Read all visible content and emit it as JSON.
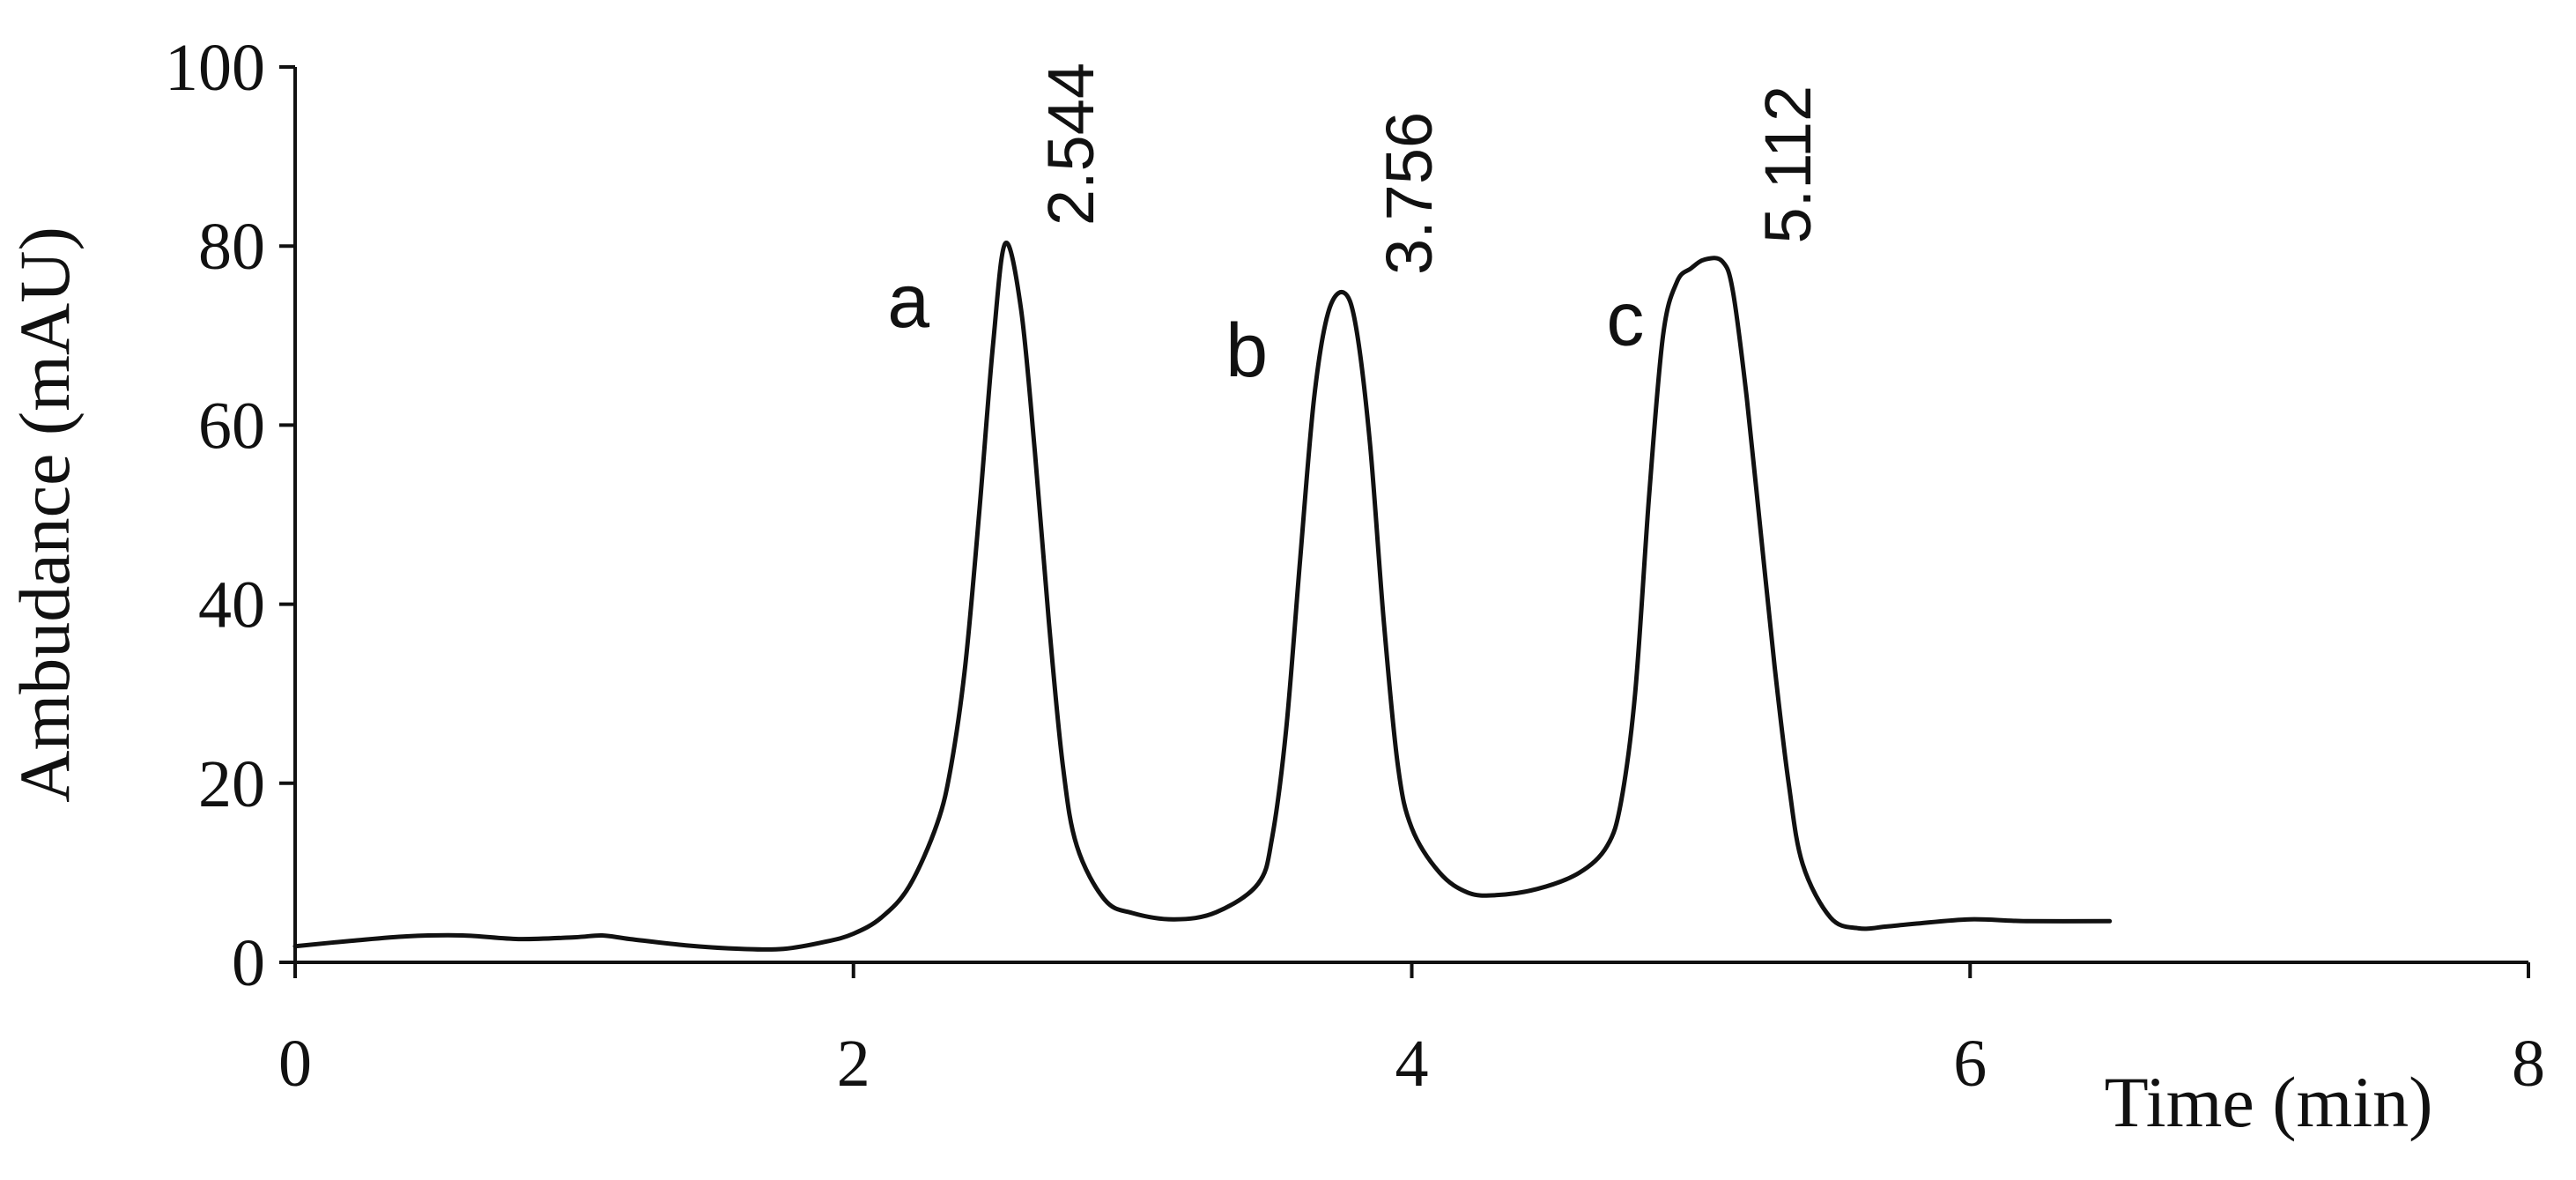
{
  "chart_data": {
    "type": "line",
    "xlabel": "Time (min)",
    "ylabel": "Ambudance (mAU)",
    "xlim": [
      0,
      8
    ],
    "ylim": [
      0,
      100
    ],
    "x_ticks": [
      0,
      2,
      4,
      6,
      8
    ],
    "y_ticks": [
      0,
      20,
      40,
      60,
      80,
      100
    ],
    "grid": false,
    "legend": "none",
    "line_color": "#111111",
    "series": [
      {
        "x": [
          0,
          0.2,
          0.4,
          0.6,
          0.8,
          1.0,
          1.1,
          1.2,
          1.4,
          1.6,
          1.75,
          1.9,
          2.0,
          2.1,
          2.2,
          2.3,
          2.35,
          2.4,
          2.45,
          2.5,
          2.544,
          2.6,
          2.65,
          2.7,
          2.75,
          2.8,
          2.9,
          3.0,
          3.15,
          3.3,
          3.45,
          3.5,
          3.55,
          3.6,
          3.65,
          3.7,
          3.756,
          3.8,
          3.85,
          3.9,
          3.95,
          4.0,
          4.1,
          4.2,
          4.3,
          4.45,
          4.6,
          4.7,
          4.75,
          4.8,
          4.85,
          4.9,
          4.95,
          5.0,
          5.05,
          5.112,
          5.15,
          5.2,
          5.25,
          5.3,
          5.35,
          5.4,
          5.5,
          5.6,
          5.7,
          5.8,
          6.0,
          6.2,
          6.5
        ],
        "y": [
          1.8,
          2.4,
          2.9,
          3.0,
          2.6,
          2.8,
          3.0,
          2.6,
          1.9,
          1.5,
          1.5,
          2.3,
          3.2,
          5.0,
          8.5,
          15.5,
          22,
          33,
          50,
          69,
          80.3,
          73,
          57,
          38,
          22,
          13,
          7,
          5.5,
          4.8,
          5.6,
          8.8,
          14,
          26,
          45,
          63,
          72.5,
          74.8,
          71,
          58,
          38,
          22,
          15,
          10,
          7.8,
          7.5,
          8.2,
          10,
          13,
          18,
          30,
          52,
          70,
          76,
          77.5,
          78.5,
          78.3,
          75,
          63,
          48,
          33,
          20,
          11,
          5,
          3.8,
          4.0,
          4.3,
          4.8,
          4.6,
          4.6
        ]
      }
    ],
    "annotations": [
      {
        "time_label": "2.544",
        "x": 2.544,
        "y": 80.3,
        "letter": "a"
      },
      {
        "time_label": "3.756",
        "x": 3.756,
        "y": 74.8,
        "letter": "b"
      },
      {
        "time_label": "5.112",
        "x": 5.112,
        "y": 78.3,
        "letter": "c"
      }
    ]
  }
}
